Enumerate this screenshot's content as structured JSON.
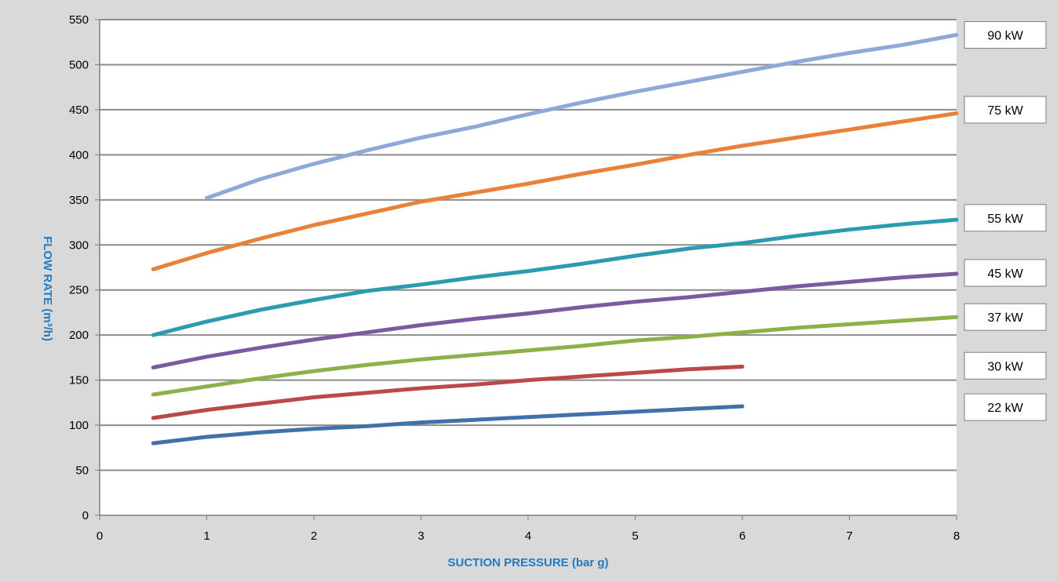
{
  "chart_data": {
    "type": "line",
    "title": "",
    "xlabel": "SUCTION PRESSURE  (bar g)",
    "ylabel": "FLOW RATE (m³/h)",
    "xlim": [
      0,
      8
    ],
    "ylim": [
      0,
      550
    ],
    "xticks": [
      0,
      1,
      2,
      3,
      4,
      5,
      6,
      7,
      8
    ],
    "yticks": [
      0,
      50,
      100,
      150,
      200,
      250,
      300,
      350,
      400,
      450,
      500,
      550
    ],
    "grid": "horizontal",
    "legend_placement": "right",
    "series": [
      {
        "name": "90 kW",
        "color": "#8ea8d8",
        "x": [
          1,
          1.5,
          2,
          2.5,
          3,
          3.5,
          4,
          4.5,
          5,
          5.5,
          6,
          6.5,
          7,
          7.5,
          8
        ],
        "y": [
          352,
          373,
          390,
          405,
          419,
          431,
          445,
          458,
          470,
          481,
          492,
          503,
          513,
          522,
          533
        ]
      },
      {
        "name": "75 kW",
        "color": "#e8823a",
        "x": [
          0.5,
          1,
          1.5,
          2,
          2.5,
          3,
          3.5,
          4,
          4.5,
          5,
          5.5,
          6,
          6.5,
          7,
          7.5,
          8
        ],
        "y": [
          273,
          291,
          307,
          322,
          335,
          348,
          358,
          368,
          379,
          389,
          400,
          410,
          419,
          428,
          437,
          446
        ]
      },
      {
        "name": "55 kW",
        "color": "#2b9bb0",
        "x": [
          0.5,
          1,
          1.5,
          2,
          2.5,
          3,
          3.5,
          4,
          4.5,
          5,
          5.5,
          6,
          6.5,
          7,
          7.5,
          8
        ],
        "y": [
          200,
          215,
          228,
          239,
          249,
          256,
          264,
          271,
          279,
          288,
          296,
          302,
          310,
          317,
          323,
          328
        ]
      },
      {
        "name": "45 kW",
        "color": "#7d5aa0",
        "x": [
          0.5,
          1,
          1.5,
          2,
          2.5,
          3,
          3.5,
          4,
          4.5,
          5,
          5.5,
          6,
          6.5,
          7,
          7.5,
          8
        ],
        "y": [
          164,
          176,
          186,
          195,
          203,
          211,
          218,
          224,
          231,
          237,
          242,
          248,
          254,
          259,
          264,
          268
        ]
      },
      {
        "name": "37 kW",
        "color": "#8db04b",
        "x": [
          0.5,
          1,
          1.5,
          2,
          2.5,
          3,
          3.5,
          4,
          4.5,
          5,
          5.5,
          6,
          6.5,
          7,
          7.5,
          8
        ],
        "y": [
          134,
          143,
          152,
          160,
          167,
          173,
          178,
          183,
          188,
          194,
          198,
          203,
          208,
          212,
          216,
          220
        ]
      },
      {
        "name": "30 kW",
        "color": "#b94a48",
        "x": [
          0.5,
          1,
          1.5,
          2,
          2.5,
          3,
          3.5,
          4,
          4.5,
          5,
          5.5,
          6
        ],
        "y": [
          108,
          117,
          124,
          131,
          136,
          141,
          145,
          150,
          154,
          158,
          162,
          165
        ]
      },
      {
        "name": "22 kW",
        "color": "#4270a8",
        "x": [
          0.5,
          1,
          1.5,
          2,
          2.5,
          3,
          3.5,
          4,
          4.5,
          5,
          5.5,
          6
        ],
        "y": [
          80,
          87,
          92,
          96,
          99,
          103,
          106,
          109,
          112,
          115,
          118,
          121
        ]
      }
    ],
    "legend": {
      "90 kW": 533,
      "75 kW": 450,
      "55 kW": 330,
      "45 kW": 269,
      "37 kW": 220,
      "30 kW": 166,
      "22 kW": 120
    }
  }
}
